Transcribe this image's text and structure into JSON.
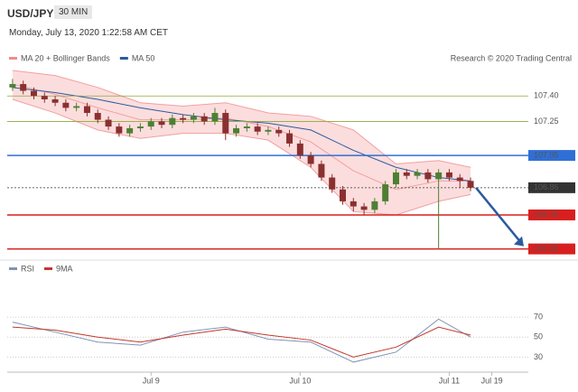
{
  "header": {
    "symbol": "USD/JPY",
    "interval": "30 MIN",
    "timestamp": "Monday, July 13, 2020 1:22:58 AM CET"
  },
  "chart_data": {
    "type": "candlestick",
    "credit": "Research © 2020 Trading Central",
    "legend": [
      {
        "name": "MA 20 + Bollinger Bands",
        "color": "#f08c8c"
      },
      {
        "name": "MA 50",
        "color": "#2c5aa0"
      }
    ],
    "up_color": "#4e7f34",
    "down_color": "#8a3030",
    "candles": [
      [
        107.45,
        107.5,
        107.43,
        107.47
      ],
      [
        107.47,
        107.49,
        107.41,
        107.43
      ],
      [
        107.43,
        107.45,
        107.38,
        107.4
      ],
      [
        107.4,
        107.42,
        107.36,
        107.38
      ],
      [
        107.38,
        107.4,
        107.34,
        107.36
      ],
      [
        107.36,
        107.38,
        107.31,
        107.33
      ],
      [
        107.33,
        107.36,
        107.31,
        107.34
      ],
      [
        107.34,
        107.36,
        107.28,
        107.3
      ],
      [
        107.3,
        107.32,
        107.24,
        107.26
      ],
      [
        107.26,
        107.28,
        107.2,
        107.22
      ],
      [
        107.22,
        107.24,
        107.16,
        107.18
      ],
      [
        107.18,
        107.23,
        107.16,
        107.21
      ],
      [
        107.21,
        107.24,
        107.19,
        107.22
      ],
      [
        107.22,
        107.27,
        107.2,
        107.25
      ],
      [
        107.25,
        107.27,
        107.21,
        107.23
      ],
      [
        107.23,
        107.29,
        107.21,
        107.27
      ],
      [
        107.27,
        107.29,
        107.24,
        107.26
      ],
      [
        107.26,
        107.3,
        107.24,
        107.28
      ],
      [
        107.28,
        107.3,
        107.23,
        107.25
      ],
      [
        107.25,
        107.33,
        107.23,
        107.3
      ],
      [
        107.3,
        107.32,
        107.14,
        107.18
      ],
      [
        107.18,
        107.23,
        107.16,
        107.21
      ],
      [
        107.21,
        107.24,
        107.19,
        107.22
      ],
      [
        107.22,
        107.24,
        107.17,
        107.19
      ],
      [
        107.19,
        107.22,
        107.17,
        107.2
      ],
      [
        107.2,
        107.22,
        107.16,
        107.18
      ],
      [
        107.18,
        107.2,
        107.1,
        107.12
      ],
      [
        107.12,
        107.14,
        107.03,
        107.05
      ],
      [
        107.05,
        107.07,
        106.98,
        107.0
      ],
      [
        107.0,
        107.02,
        106.9,
        106.92
      ],
      [
        106.92,
        106.94,
        106.83,
        106.85
      ],
      [
        106.85,
        106.87,
        106.76,
        106.78
      ],
      [
        106.78,
        106.8,
        106.72,
        106.75
      ],
      [
        106.75,
        106.77,
        106.7,
        106.73
      ],
      [
        106.73,
        106.8,
        106.71,
        106.78
      ],
      [
        106.78,
        106.9,
        106.76,
        106.88
      ],
      [
        106.88,
        106.97,
        106.86,
        106.95
      ],
      [
        106.95,
        106.97,
        106.91,
        106.93
      ],
      [
        106.93,
        106.97,
        106.91,
        106.95
      ],
      [
        106.95,
        106.97,
        106.89,
        106.91
      ],
      [
        106.91,
        106.97,
        106.5,
        106.95
      ],
      [
        106.95,
        106.97,
        106.9,
        106.92
      ],
      [
        106.92,
        106.94,
        106.86,
        106.9
      ],
      [
        106.9,
        106.92,
        106.84,
        106.86
      ]
    ],
    "bands": {
      "x": [
        0,
        4,
        8,
        12,
        16,
        20,
        24,
        28,
        32,
        36,
        40,
        43
      ],
      "upper": [
        107.55,
        107.52,
        107.45,
        107.36,
        107.34,
        107.36,
        107.3,
        107.28,
        107.2,
        107.0,
        107.02,
        106.98
      ],
      "lower": [
        107.38,
        107.3,
        107.2,
        107.15,
        107.18,
        107.18,
        107.14,
        106.98,
        106.72,
        106.7,
        106.78,
        106.82
      ],
      "ma20": [
        107.47,
        107.41,
        107.33,
        107.26,
        107.26,
        107.27,
        107.22,
        107.13,
        106.96,
        106.85,
        106.9,
        106.9
      ],
      "ma50": [
        107.45,
        107.42,
        107.38,
        107.33,
        107.29,
        107.26,
        107.24,
        107.2,
        107.08,
        106.98,
        106.92,
        106.9
      ]
    },
    "levels": [
      {
        "value": 107.4,
        "label": "107.40",
        "color": "#8aa83c",
        "boxed": false,
        "dashed": false
      },
      {
        "value": 107.25,
        "label": "107.25",
        "color": "#8aa83c",
        "boxed": false,
        "dashed": false
      },
      {
        "value": 107.05,
        "label": "107.05",
        "color": "#2f6fd6",
        "boxed": true,
        "dashed": false
      },
      {
        "value": 106.86,
        "label": "106.86",
        "color": "#333333",
        "boxed": true,
        "dashed": true
      },
      {
        "value": 106.7,
        "label": "106.70",
        "color": "#d81f1f",
        "boxed": true,
        "dashed": false
      },
      {
        "value": 106.5,
        "label": "106.50",
        "color": "#d81f1f",
        "boxed": true,
        "dashed": false
      }
    ],
    "xlim": [
      -0.5,
      48
    ],
    "ylim": [
      106.45,
      107.55
    ],
    "xticks": [
      {
        "value": 13,
        "label": "Jul 9"
      },
      {
        "value": 27,
        "label": "Jul 10"
      },
      {
        "value": 41,
        "label": "Jul 11"
      },
      {
        "value": 45,
        "label": "Jul 19"
      }
    ],
    "rsi": {
      "legend": [
        {
          "name": "RSI",
          "color": "#7f93b5"
        },
        {
          "name": "9MA",
          "color": "#c0392b"
        }
      ],
      "x": [
        0,
        4,
        8,
        12,
        16,
        20,
        24,
        28,
        32,
        36,
        40,
        43
      ],
      "rsi": [
        65,
        55,
        45,
        42,
        55,
        60,
        48,
        45,
        25,
        35,
        68,
        50
      ],
      "ma9": [
        60,
        57,
        50,
        45,
        52,
        58,
        52,
        47,
        30,
        40,
        60,
        52
      ],
      "ylim": [
        15,
        80
      ],
      "yticks": [
        70,
        50,
        30
      ]
    }
  }
}
